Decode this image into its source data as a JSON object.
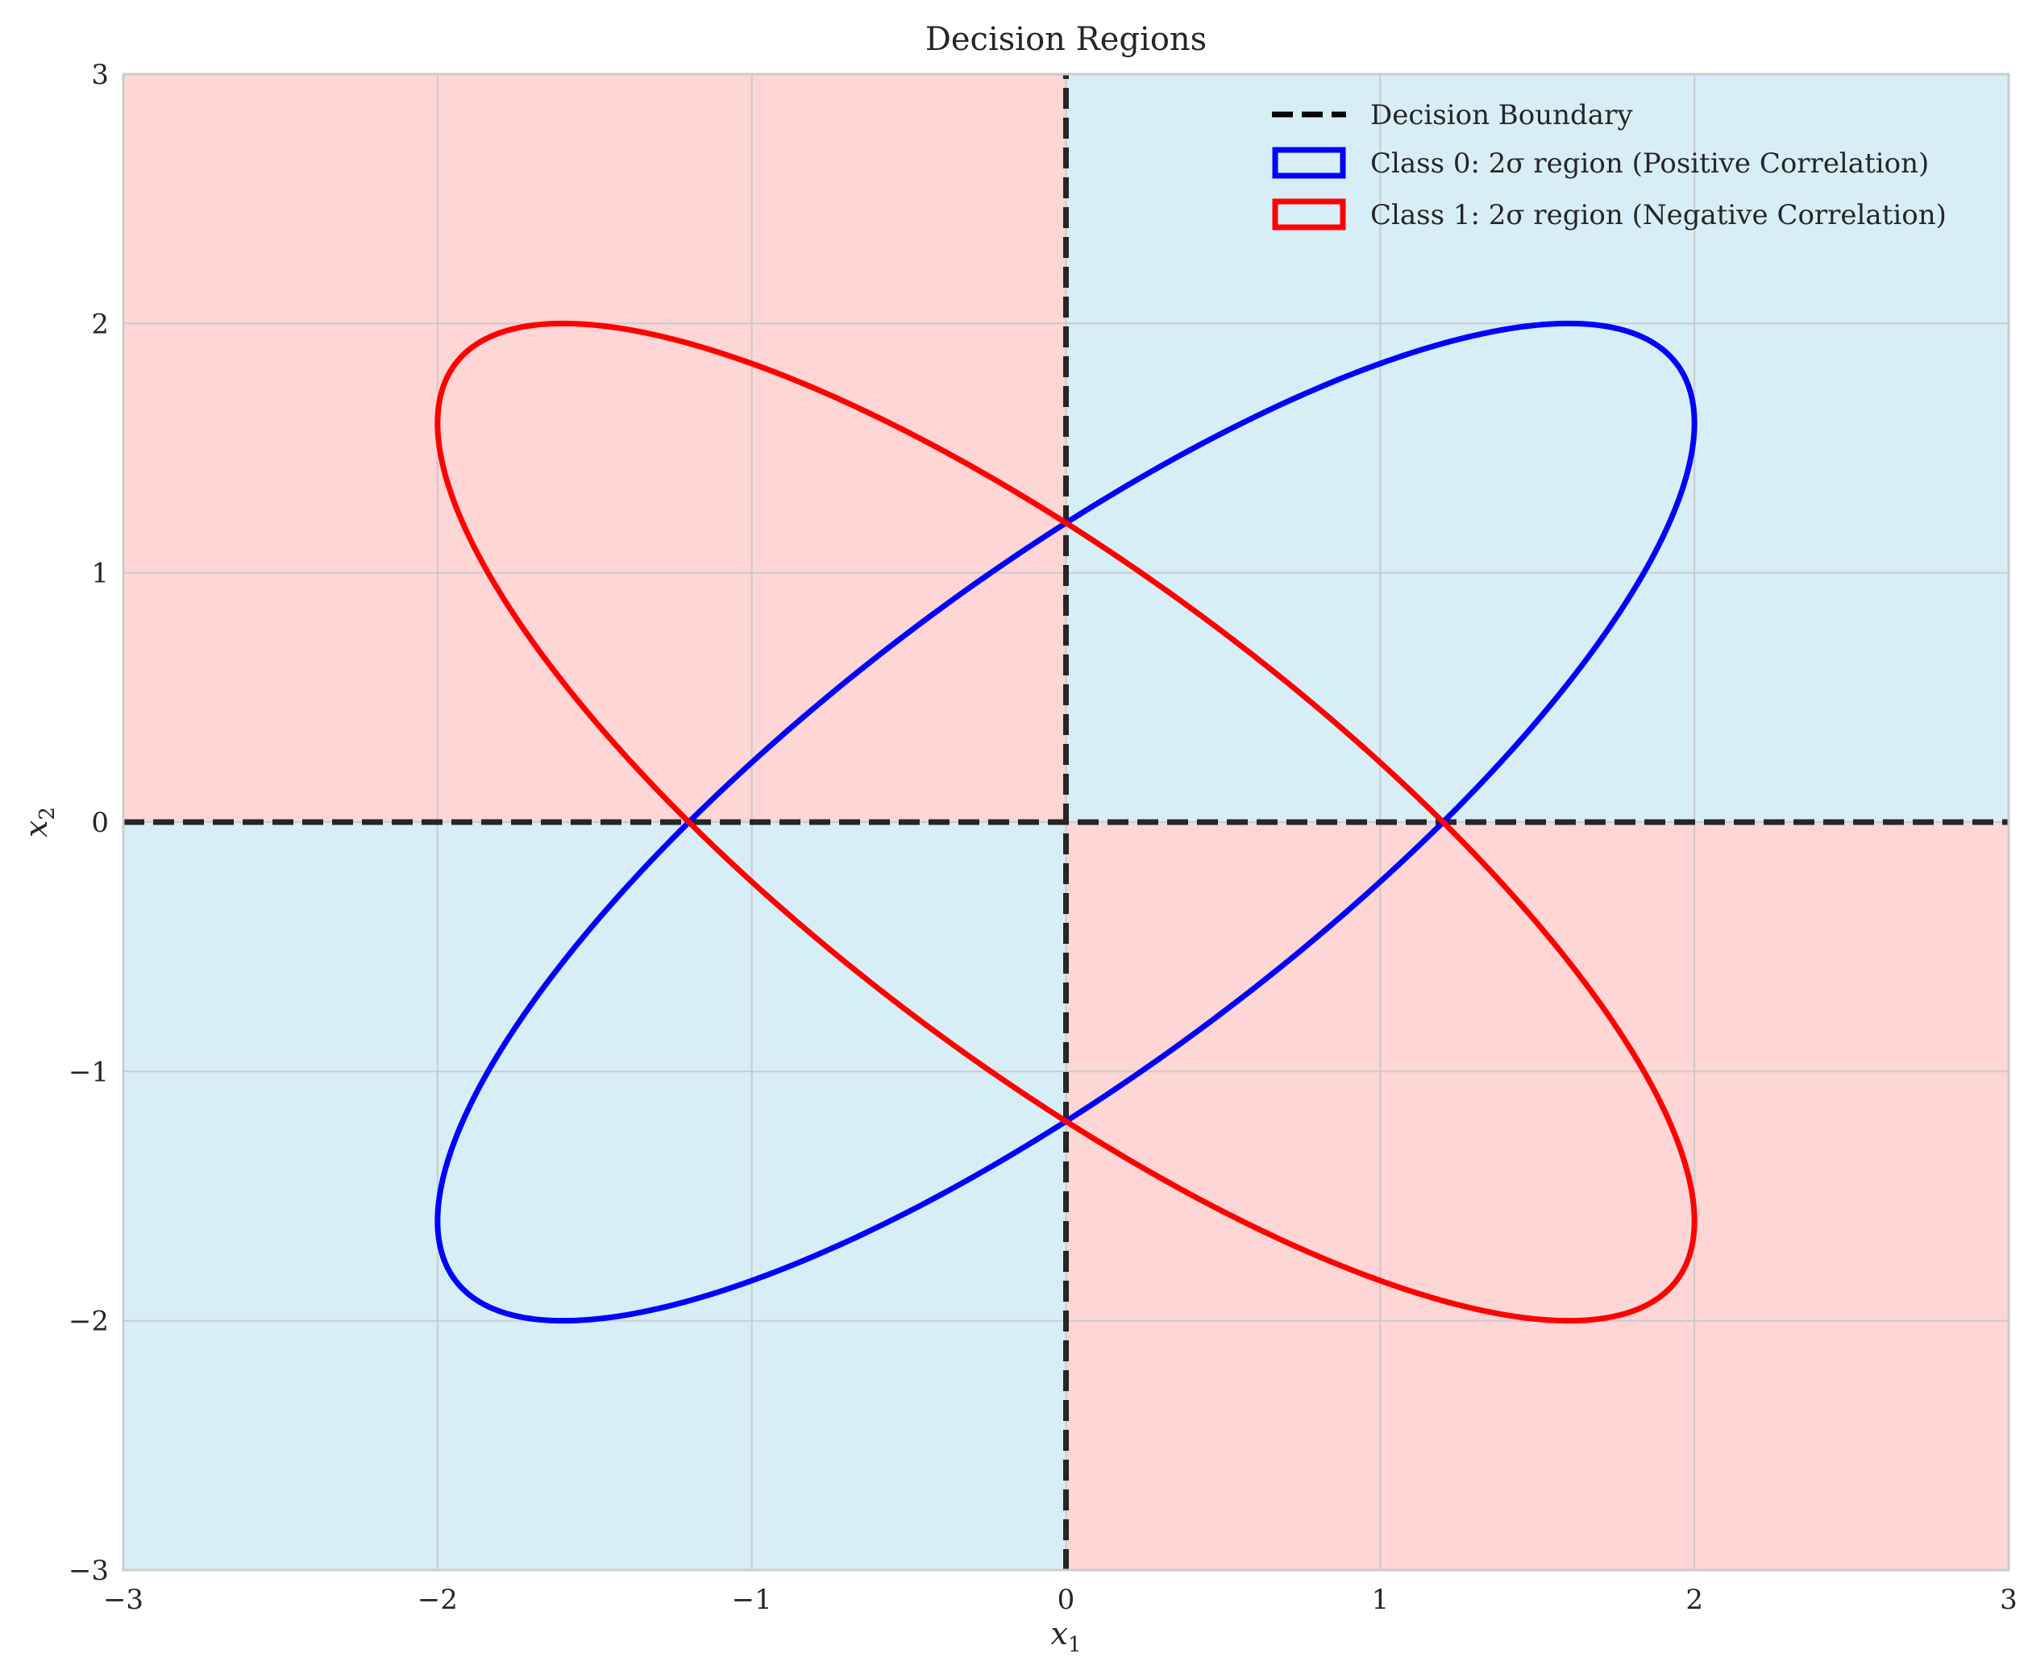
{
  "chart_data": {
    "type": "line",
    "title": "Decision Regions",
    "xlabel": "x",
    "xlabel_sub": "1",
    "ylabel": "x",
    "ylabel_sub": "2",
    "xlim": [
      -3,
      3
    ],
    "ylim": [
      -3,
      3
    ],
    "xticks": [
      -3,
      -2,
      -1,
      0,
      1,
      2,
      3
    ],
    "yticks": [
      -3,
      -2,
      -1,
      0,
      1,
      2,
      3
    ],
    "xtick_labels": [
      "−3",
      "−2",
      "−1",
      "0",
      "1",
      "2",
      "3"
    ],
    "ytick_labels": [
      "−3",
      "−2",
      "−1",
      "0",
      "1",
      "2",
      "3"
    ],
    "grid": true,
    "legend_position": "top-right",
    "regions": [
      {
        "class": 0,
        "x": [
          0,
          3
        ],
        "y": [
          0,
          3
        ],
        "color": "#d8eef7"
      },
      {
        "class": 1,
        "x": [
          -3,
          0
        ],
        "y": [
          0,
          3
        ],
        "color": "#fdd6d5"
      },
      {
        "class": 0,
        "x": [
          -3,
          0
        ],
        "y": [
          -3,
          0
        ],
        "color": "#d8eef7"
      },
      {
        "class": 1,
        "x": [
          0,
          3
        ],
        "y": [
          -3,
          0
        ],
        "color": "#fdd6d5"
      }
    ],
    "decision_boundary": {
      "name": "Decision Boundary",
      "color": "#262626",
      "lines": [
        {
          "x": [
            0,
            0
          ],
          "y": [
            -3,
            3
          ]
        },
        {
          "x": [
            -3,
            3
          ],
          "y": [
            0,
            0
          ]
        }
      ]
    },
    "series": [
      {
        "name": "Class 0: 2σ region (Positive Correlation)",
        "color": "#0000ff",
        "mean": [
          0,
          0
        ],
        "covariance": [
          [
            1,
            0.8
          ],
          [
            0.8,
            1
          ]
        ],
        "n_std": 2
      },
      {
        "name": "Class 1: 2σ region (Negative Correlation)",
        "color": "#ff0000",
        "mean": [
          0,
          0
        ],
        "covariance": [
          [
            1,
            -0.8
          ],
          [
            -0.8,
            1
          ]
        ],
        "n_std": 2
      }
    ]
  }
}
